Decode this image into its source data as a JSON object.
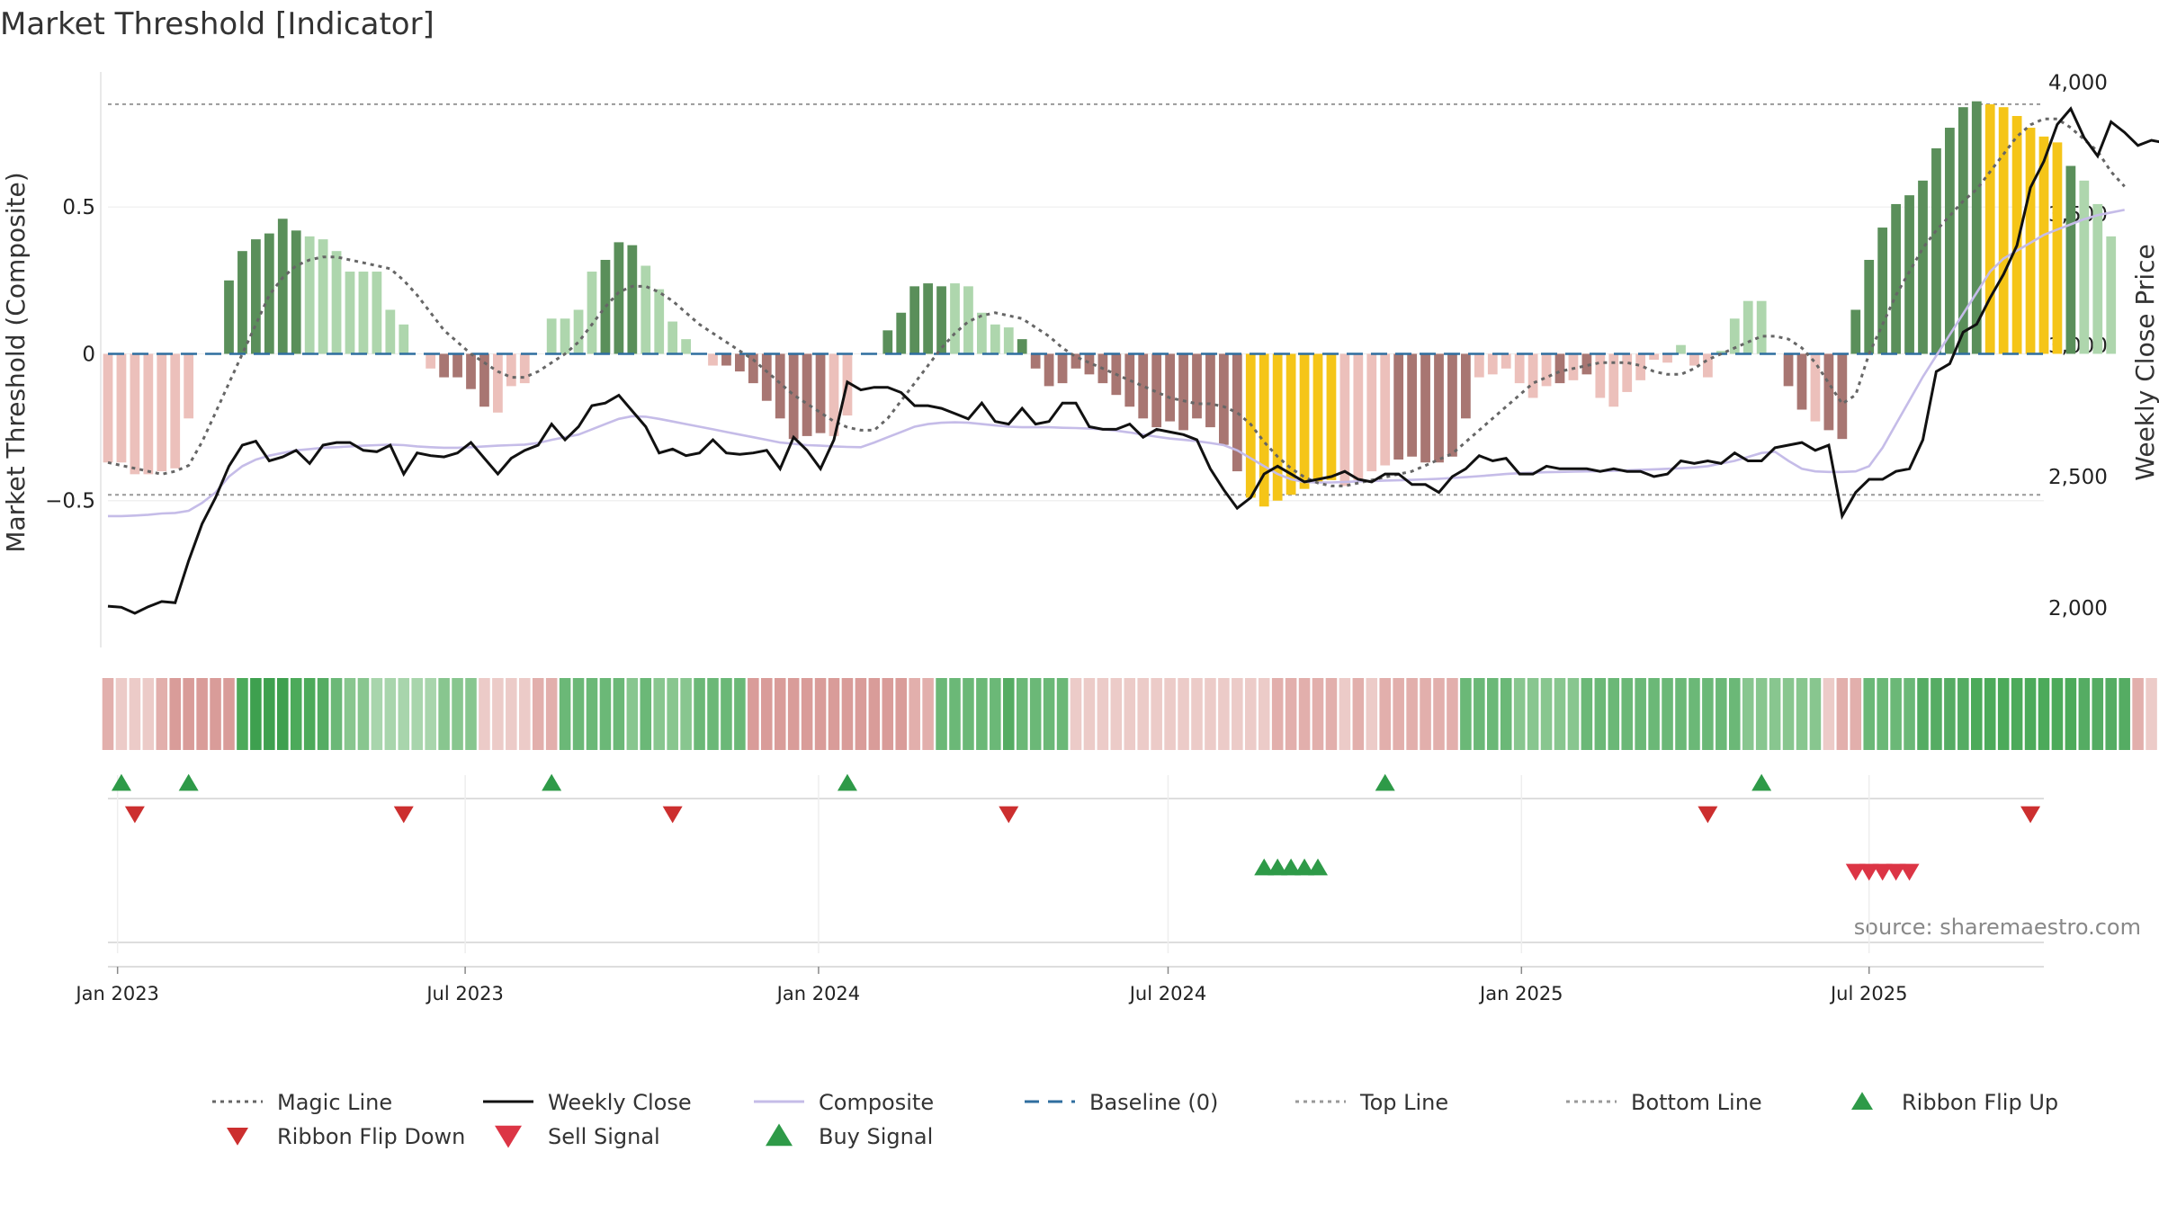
{
  "chart_data": {
    "type": "bar",
    "title": "Market Threshold [Indicator]",
    "ylabel_left": "Market Threshold (Composite)",
    "ylabel_right": "Weekly Close Price",
    "source": "source: sharemaestro.com",
    "left_axis": {
      "ylim": [
        -1.0,
        0.96
      ],
      "ticks": [
        0.5,
        0,
        -0.5
      ],
      "tick_labels": [
        "0.5",
        "0",
        "−0.5"
      ]
    },
    "right_axis": {
      "ylim": [
        1850,
        4040
      ],
      "ticks": [
        4000,
        3500,
        3000,
        2500,
        2000
      ],
      "tick_labels": [
        "4,000",
        "3,500",
        "3,000",
        "2,500",
        "2,000"
      ]
    },
    "x_axis": {
      "start": "2022-12-27",
      "end": "2025-09-30",
      "ticks": [
        "2023-01-01",
        "2023-07-01",
        "2024-01-01",
        "2024-07-01",
        "2025-01-01",
        "2025-07-01"
      ],
      "tick_labels": [
        "Jan 2023",
        "Jul 2023",
        "Jan 2024",
        "Jul 2024",
        "Jan 2025",
        "Jul 2025"
      ]
    },
    "reference_lines": {
      "top_line": 0.85,
      "bottom_line": -0.48,
      "baseline": 0
    },
    "colors": {
      "bull_strong": "#5a8f5a",
      "bull_weak": "#aed6ad",
      "bear_strong": "#a87672",
      "bear_weak": "#ecc0bb",
      "extreme": "#f5c518",
      "magic_line": "#666666",
      "weekly_close": "#111111",
      "composite": "#c5bce8",
      "baseline": "#2f6e9f",
      "threshold_line": "#999999",
      "flip_up": "#2e9a48",
      "flip_down": "#cc2f2f",
      "buy": "#2e9a48",
      "sell": "#dc3545"
    },
    "histogram": [
      -0.37,
      -0.37,
      -0.41,
      -0.41,
      -0.4,
      -0.39,
      -0.22,
      0.0,
      0.12,
      0.25,
      0.35,
      0.39,
      0.41,
      0.46,
      0.42,
      0.4,
      0.39,
      0.35,
      0.28,
      0.28,
      0.28,
      0.15,
      0.1,
      0.0,
      -0.05,
      -0.08,
      -0.08,
      -0.12,
      -0.18,
      -0.2,
      -0.11,
      -0.1,
      -0.03,
      0.12,
      0.12,
      0.15,
      0.28,
      0.32,
      0.38,
      0.37,
      0.3,
      0.22,
      0.11,
      0.05,
      0.0,
      -0.04,
      -0.04,
      -0.06,
      -0.1,
      -0.16,
      -0.22,
      -0.29,
      -0.28,
      -0.27,
      -0.28,
      -0.21,
      -0.16,
      0.0,
      0.08,
      0.14,
      0.23,
      0.24,
      0.23,
      0.24,
      0.23,
      0.14,
      0.1,
      0.09,
      0.05,
      -0.05,
      -0.11,
      -0.1,
      -0.05,
      -0.07,
      -0.1,
      -0.14,
      -0.18,
      -0.22,
      -0.25,
      -0.23,
      -0.26,
      -0.22,
      -0.25,
      -0.31,
      -0.4,
      -0.49,
      -0.52,
      -0.5,
      -0.48,
      -0.46,
      -0.44,
      -0.43,
      -0.45,
      -0.43,
      -0.4,
      -0.38,
      -0.36,
      -0.35,
      -0.37,
      -0.37,
      -0.35,
      -0.22,
      -0.08,
      -0.07,
      -0.05,
      -0.1,
      -0.15,
      -0.11,
      -0.1,
      -0.09,
      -0.07,
      -0.15,
      -0.18,
      -0.13,
      -0.09,
      -0.02,
      -0.03,
      0.03,
      -0.04,
      -0.08,
      0.01,
      0.12,
      0.18,
      0.18,
      0.0,
      -0.11,
      -0.19,
      -0.23,
      -0.26,
      -0.29,
      0.15,
      0.32,
      0.43,
      0.51,
      0.54,
      0.59,
      0.7,
      0.77,
      0.84,
      0.86,
      0.85,
      0.84,
      0.81,
      0.77,
      0.74,
      0.72,
      0.64,
      0.59,
      0.51,
      0.4
    ],
    "histogram_class": "bbbbbbb..BBBBBBbbbbbbbb.bBBBBbbb.bbbbBBBbbbb.bBBBBBBBBbb.bBBBBBbbbbbBBBBBBBBBBBBBBBBBYYYYYYYbbbbBBBBBBbbbbbbBbBbbbbbbbbbbbbbBBBbBBBBBBBBBBBBYYYYYYBbbbbbb",
    "magic_line": [
      -0.37,
      -0.38,
      -0.39,
      -0.4,
      -0.41,
      -0.4,
      -0.38,
      -0.3,
      -0.2,
      -0.1,
      0.0,
      0.1,
      0.2,
      0.26,
      0.3,
      0.32,
      0.33,
      0.33,
      0.32,
      0.31,
      0.3,
      0.29,
      0.25,
      0.2,
      0.14,
      0.08,
      0.04,
      0.0,
      -0.03,
      -0.06,
      -0.08,
      -0.08,
      -0.06,
      -0.03,
      0.0,
      0.04,
      0.1,
      0.16,
      0.21,
      0.23,
      0.23,
      0.21,
      0.18,
      0.14,
      0.1,
      0.07,
      0.04,
      0.01,
      -0.02,
      -0.06,
      -0.1,
      -0.14,
      -0.17,
      -0.2,
      -0.23,
      -0.25,
      -0.26,
      -0.26,
      -0.22,
      -0.16,
      -0.1,
      -0.04,
      0.02,
      0.07,
      0.11,
      0.13,
      0.14,
      0.13,
      0.12,
      0.09,
      0.06,
      0.02,
      -0.01,
      -0.03,
      -0.05,
      -0.07,
      -0.09,
      -0.11,
      -0.13,
      -0.15,
      -0.16,
      -0.17,
      -0.17,
      -0.18,
      -0.2,
      -0.24,
      -0.3,
      -0.35,
      -0.39,
      -0.42,
      -0.44,
      -0.45,
      -0.45,
      -0.44,
      -0.43,
      -0.42,
      -0.41,
      -0.4,
      -0.38,
      -0.36,
      -0.34,
      -0.3,
      -0.26,
      -0.22,
      -0.18,
      -0.14,
      -0.1,
      -0.08,
      -0.06,
      -0.05,
      -0.04,
      -0.03,
      -0.03,
      -0.03,
      -0.04,
      -0.06,
      -0.07,
      -0.07,
      -0.05,
      -0.02,
      0.0,
      0.02,
      0.04,
      0.06,
      0.06,
      0.05,
      0.02,
      -0.03,
      -0.1,
      -0.17,
      -0.14,
      0.0,
      0.1,
      0.2,
      0.28,
      0.36,
      0.42,
      0.47,
      0.52,
      0.56,
      0.62,
      0.68,
      0.74,
      0.78,
      0.8,
      0.8,
      0.77,
      0.73,
      0.69,
      0.62,
      0.57
    ],
    "composite": [
      2350,
      2350,
      2352,
      2355,
      2360,
      2362,
      2370,
      2400,
      2440,
      2500,
      2540,
      2565,
      2580,
      2590,
      2600,
      2605,
      2610,
      2612,
      2615,
      2618,
      2620,
      2622,
      2620,
      2615,
      2612,
      2610,
      2610,
      2612,
      2615,
      2618,
      2620,
      2622,
      2628,
      2640,
      2650,
      2660,
      2680,
      2700,
      2720,
      2730,
      2728,
      2720,
      2710,
      2700,
      2690,
      2680,
      2670,
      2660,
      2650,
      2640,
      2630,
      2625,
      2620,
      2618,
      2615,
      2613,
      2612,
      2630,
      2650,
      2670,
      2690,
      2700,
      2705,
      2707,
      2705,
      2700,
      2695,
      2690,
      2688,
      2688,
      2688,
      2686,
      2685,
      2683,
      2680,
      2675,
      2668,
      2660,
      2652,
      2645,
      2640,
      2635,
      2628,
      2620,
      2600,
      2570,
      2540,
      2510,
      2490,
      2480,
      2478,
      2478,
      2480,
      2482,
      2483,
      2485,
      2486,
      2488,
      2490,
      2492,
      2495,
      2498,
      2502,
      2506,
      2510,
      2513,
      2515,
      2517,
      2518,
      2519,
      2520,
      2521,
      2522,
      2524,
      2526,
      2528,
      2530,
      2532,
      2535,
      2540,
      2550,
      2560,
      2575,
      2590,
      2595,
      2560,
      2530,
      2520,
      2518,
      2518,
      2520,
      2540,
      2610,
      2700,
      2790,
      2880,
      2960,
      3040,
      3120,
      3200,
      3280,
      3330,
      3360,
      3390,
      3420,
      3440,
      3460,
      3480,
      3495,
      3505,
      3515
    ],
    "weekly_close": [
      2007,
      2003,
      1980,
      2005,
      2025,
      2020,
      2180,
      2320,
      2420,
      2540,
      2620,
      2635,
      2560,
      2575,
      2600,
      2550,
      2620,
      2630,
      2630,
      2600,
      2595,
      2620,
      2510,
      2590,
      2580,
      2575,
      2590,
      2630,
      2570,
      2510,
      2570,
      2600,
      2620,
      2700,
      2640,
      2690,
      2770,
      2780,
      2810,
      2750,
      2690,
      2590,
      2605,
      2580,
      2590,
      2640,
      2590,
      2585,
      2590,
      2600,
      2530,
      2650,
      2600,
      2530,
      2640,
      2860,
      2830,
      2840,
      2840,
      2820,
      2770,
      2770,
      2760,
      2740,
      2720,
      2780,
      2710,
      2700,
      2760,
      2700,
      2710,
      2780,
      2780,
      2690,
      2680,
      2680,
      2700,
      2650,
      2680,
      2670,
      2660,
      2640,
      2530,
      2450,
      2380,
      2420,
      2510,
      2540,
      2510,
      2480,
      2490,
      2500,
      2520,
      2490,
      2480,
      2510,
      2510,
      2470,
      2470,
      2440,
      2500,
      2530,
      2580,
      2560,
      2570,
      2510,
      2510,
      2540,
      2530,
      2530,
      2530,
      2520,
      2530,
      2520,
      2520,
      2500,
      2510,
      2560,
      2550,
      2560,
      2550,
      2590,
      2560,
      2560,
      2610,
      2620,
      2630,
      2600,
      2620,
      2350,
      2440,
      2490,
      2490,
      2520,
      2530,
      2640,
      2900,
      2930,
      3050,
      3080,
      3180,
      3270,
      3380,
      3600,
      3700,
      3840,
      3900,
      3790,
      3720,
      3850,
      3810,
      3760,
      3780,
      3770,
      3790,
      3770,
      3790
    ],
    "ribbon": "2111233344456544321100000111111122222221211122223333333333332222222322221111111111111112222212122222222221111122222222222211111112222223333444444443333211",
    "ribbon_flip_up_weeks": [
      1,
      6,
      33,
      55,
      95,
      123
    ],
    "ribbon_flip_down_weeks": [
      2,
      22,
      42,
      67,
      119,
      143
    ],
    "buy_signal_weeks": [
      86,
      87,
      88,
      89,
      90
    ],
    "sell_signal_weeks": [
      130,
      131,
      132,
      133,
      134
    ]
  },
  "legend": [
    {
      "label": "Magic Line",
      "symbol": "dotted-line",
      "color": "#666666"
    },
    {
      "label": "Weekly Close",
      "symbol": "solid-line",
      "color": "#111111"
    },
    {
      "label": "Composite",
      "symbol": "solid-line",
      "color": "#c5bce8"
    },
    {
      "label": "Baseline (0)",
      "symbol": "dashed-line",
      "color": "#2f6e9f"
    },
    {
      "label": "Top Line",
      "symbol": "dotted-line",
      "color": "#999999"
    },
    {
      "label": "Bottom Line",
      "symbol": "dotted-line",
      "color": "#999999"
    },
    {
      "label": "Ribbon Flip Up",
      "symbol": "triangle-up",
      "color": "#2e9a48"
    },
    {
      "label": "Ribbon Flip Down",
      "symbol": "triangle-down",
      "color": "#cc2f2f"
    },
    {
      "label": "Sell Signal",
      "symbol": "triangle-down",
      "color": "#dc3545"
    },
    {
      "label": "Buy Signal",
      "symbol": "triangle-up",
      "color": "#2e9a48"
    }
  ]
}
